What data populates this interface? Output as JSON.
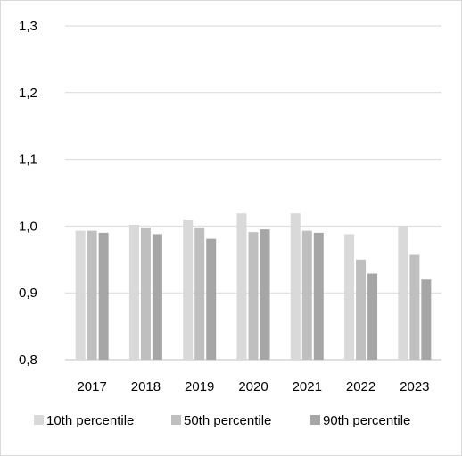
{
  "chart_data": {
    "type": "bar",
    "categories": [
      "2017",
      "2018",
      "2019",
      "2020",
      "2021",
      "2022",
      "2023"
    ],
    "series": [
      {
        "name": "10th percentile",
        "color": "#d9d9d9",
        "values": [
          0.993,
          1.002,
          1.01,
          1.019,
          1.019,
          0.988,
          1.0
        ]
      },
      {
        "name": "50th percentile",
        "color": "#bfbfbf",
        "values": [
          0.993,
          0.998,
          0.998,
          0.991,
          0.993,
          0.95,
          0.957
        ]
      },
      {
        "name": "90th percentile",
        "color": "#a6a6a6",
        "values": [
          0.99,
          0.988,
          0.981,
          0.995,
          0.99,
          0.929,
          0.92
        ]
      }
    ],
    "y_ticks": [
      "0,8",
      "0,9",
      "1,0",
      "1,1",
      "1,2",
      "1,3"
    ],
    "ylim": [
      0.8,
      1.3
    ],
    "grid": true,
    "legend_position": "bottom",
    "title": "",
    "xlabel": "",
    "ylabel": ""
  }
}
